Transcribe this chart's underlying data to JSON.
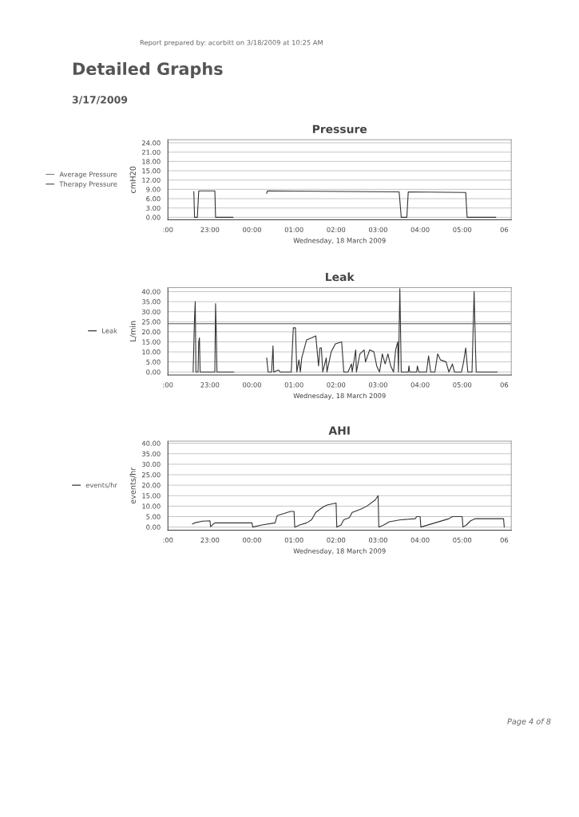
{
  "chart_data": [
    {
      "type": "other",
      "title": "Detailed Graphs",
      "subtitle": "3/17/2009",
      "annotations": [
        "Report prepared by: acorbitt on 3/18/2009 at 10:25 AM",
        "Page 4 of 8"
      ]
    },
    {
      "type": "line",
      "title": "Pressure",
      "xlabel": "Wednesday, 18 March 2009",
      "ylabel": "cmH20",
      "xlim": [
        "2009-03-17T22:00",
        "2009-03-18T06:10"
      ],
      "ylim": [
        -0.8,
        25
      ],
      "xticks": [
        {
          "value": "2009-03-17T22:00",
          "label": ":00"
        },
        {
          "value": "2009-03-17T23:00",
          "label": "23:00"
        },
        {
          "value": "2009-03-18T00:00",
          "label": "00:00"
        },
        {
          "value": "2009-03-18T01:00",
          "label": "01:00"
        },
        {
          "value": "2009-03-18T02:00",
          "label": "02:00"
        },
        {
          "value": "2009-03-18T03:00",
          "label": "03:00"
        },
        {
          "value": "2009-03-18T04:00",
          "label": "04:00"
        },
        {
          "value": "2009-03-18T05:00",
          "label": "05:00"
        },
        {
          "value": "2009-03-18T06:00",
          "label": "06"
        }
      ],
      "yticks": [
        {
          "value": 0,
          "label": "0.00"
        },
        {
          "value": 3,
          "label": "3.00"
        },
        {
          "value": 6,
          "label": "6.00"
        },
        {
          "value": 9,
          "label": "9.00"
        },
        {
          "value": 12,
          "label": "12.00"
        },
        {
          "value": 15,
          "label": "15.00"
        },
        {
          "value": 18,
          "label": "18.00"
        },
        {
          "value": 21,
          "label": "21.00"
        },
        {
          "value": 24,
          "label": "24.00"
        }
      ],
      "grid": "y",
      "legend": "left",
      "series": [
        {
          "name": "Average Pressure",
          "color": "#777777"
        },
        {
          "name": "Therapy Pressure",
          "color": "#333333",
          "x": [
            "2009-03-17T22:37",
            "2009-03-17T22:38",
            "2009-03-17T22:42",
            "2009-03-17T22:44",
            "2009-03-17T23:07",
            "2009-03-17T23:08",
            "2009-03-17T23:33",
            "2009-03-18T00:00",
            "2009-03-18T00:21",
            "2009-03-18T00:22",
            "2009-03-18T03:30",
            "2009-03-18T03:33",
            "2009-03-18T03:41",
            "2009-03-18T03:43",
            "2009-03-18T05:05",
            "2009-03-18T05:07",
            "2009-03-18T05:48"
          ],
          "values": [
            8.3,
            0,
            0,
            8.5,
            8.5,
            0,
            0,
            null,
            7.7,
            8.5,
            8.2,
            0,
            0,
            8.2,
            8.0,
            0,
            0
          ]
        }
      ]
    },
    {
      "type": "line",
      "title": "Leak",
      "xlabel": "Wednesday, 18 March 2009",
      "ylabel": "L/min",
      "xlim": [
        "2009-03-17T22:00",
        "2009-03-18T06:10"
      ],
      "ylim": [
        -1.5,
        42
      ],
      "xticks": [
        {
          "value": "2009-03-17T22:00",
          "label": ":00"
        },
        {
          "value": "2009-03-17T23:00",
          "label": "23:00"
        },
        {
          "value": "2009-03-18T00:00",
          "label": "00:00"
        },
        {
          "value": "2009-03-18T01:00",
          "label": "01:00"
        },
        {
          "value": "2009-03-18T02:00",
          "label": "02:00"
        },
        {
          "value": "2009-03-18T03:00",
          "label": "03:00"
        },
        {
          "value": "2009-03-18T04:00",
          "label": "04:00"
        },
        {
          "value": "2009-03-18T05:00",
          "label": "05:00"
        },
        {
          "value": "2009-03-18T06:00",
          "label": "06"
        }
      ],
      "yticks": [
        {
          "value": 0,
          "label": "0.00"
        },
        {
          "value": 5,
          "label": "5.00"
        },
        {
          "value": 10,
          "label": "10.00"
        },
        {
          "value": 15,
          "label": "15.00"
        },
        {
          "value": 20,
          "label": "20.00"
        },
        {
          "value": 25,
          "label": "25.00"
        },
        {
          "value": 30,
          "label": "30.00"
        },
        {
          "value": 35,
          "label": "35.00"
        },
        {
          "value": 40,
          "label": "40.00"
        }
      ],
      "grid": "y",
      "legend": "left",
      "ref_lines": [
        {
          "axis": "y",
          "value": 24,
          "label": null,
          "color": "#555555"
        }
      ],
      "series": [
        {
          "name": "Leak",
          "color": "#333333",
          "x": [
            "2009-03-17T22:36",
            "2009-03-17T22:38",
            "2009-03-17T22:39",
            "2009-03-17T22:40",
            "2009-03-17T22:43",
            "2009-03-17T22:44",
            "2009-03-17T22:45",
            "2009-03-17T22:46",
            "2009-03-17T23:07",
            "2009-03-17T23:08",
            "2009-03-17T23:09",
            "2009-03-17T23:10",
            "2009-03-17T23:34",
            "2009-03-18T00:00",
            "2009-03-18T00:21",
            "2009-03-18T00:23",
            "2009-03-18T00:28",
            "2009-03-18T00:30",
            "2009-03-18T00:31",
            "2009-03-18T00:38",
            "2009-03-18T00:40",
            "2009-03-18T00:56",
            "2009-03-18T00:59",
            "2009-03-18T01:02",
            "2009-03-18T01:04",
            "2009-03-18T01:07",
            "2009-03-18T01:09",
            "2009-03-18T01:11",
            "2009-03-18T01:18",
            "2009-03-18T01:25",
            "2009-03-18T01:31",
            "2009-03-18T01:35",
            "2009-03-18T01:37",
            "2009-03-18T01:39",
            "2009-03-18T01:41",
            "2009-03-18T01:46",
            "2009-03-18T01:47",
            "2009-03-18T01:53",
            "2009-03-18T01:59",
            "2009-03-18T02:08",
            "2009-03-18T02:11",
            "2009-03-18T02:17",
            "2009-03-18T02:22",
            "2009-03-18T02:23",
            "2009-03-18T02:28",
            "2009-03-18T02:29",
            "2009-03-18T02:34",
            "2009-03-18T02:40",
            "2009-03-18T02:42",
            "2009-03-18T02:48",
            "2009-03-18T02:54",
            "2009-03-18T02:58",
            "2009-03-18T03:02",
            "2009-03-18T03:06",
            "2009-03-18T03:10",
            "2009-03-18T03:14",
            "2009-03-18T03:18",
            "2009-03-18T03:22",
            "2009-03-18T03:25",
            "2009-03-18T03:28",
            "2009-03-18T03:29",
            "2009-03-18T03:31",
            "2009-03-18T03:33",
            "2009-03-18T03:43",
            "2009-03-18T03:44",
            "2009-03-18T03:45",
            "2009-03-18T03:55",
            "2009-03-18T03:56",
            "2009-03-18T03:58",
            "2009-03-18T04:09",
            "2009-03-18T04:12",
            "2009-03-18T04:15",
            "2009-03-18T04:21",
            "2009-03-18T04:25",
            "2009-03-18T04:29",
            "2009-03-18T04:37",
            "2009-03-18T04:41",
            "2009-03-18T04:46",
            "2009-03-18T04:49",
            "2009-03-18T04:59",
            "2009-03-18T05:02",
            "2009-03-18T05:05",
            "2009-03-18T05:08",
            "2009-03-18T05:14",
            "2009-03-18T05:17",
            "2009-03-18T05:19",
            "2009-03-18T05:20",
            "2009-03-18T05:50"
          ],
          "values": [
            0,
            27,
            35,
            0,
            0,
            15,
            17,
            0,
            0,
            34,
            20,
            0,
            0,
            null,
            7,
            0,
            0,
            13,
            0,
            1,
            0,
            0,
            22,
            22,
            0,
            6,
            0,
            7,
            16,
            17,
            18,
            3,
            12,
            12,
            0,
            7,
            0,
            10,
            14,
            15,
            0,
            0,
            4,
            0,
            11,
            0,
            9,
            11,
            5,
            11,
            10,
            3,
            0,
            9,
            4,
            9,
            3,
            0,
            11,
            15,
            0,
            41.5,
            0,
            0,
            3,
            0,
            0,
            3,
            0,
            0,
            8,
            0,
            0,
            9,
            6,
            5,
            0,
            4,
            0,
            0,
            5,
            12,
            0,
            0,
            40,
            11,
            0,
            0
          ]
        }
      ]
    },
    {
      "type": "line",
      "title": "AHI",
      "xlabel": "Wednesday, 18 March 2009",
      "ylabel": "events/hr",
      "xlim": [
        "2009-03-17T22:00",
        "2009-03-18T06:10"
      ],
      "ylim": [
        -1.5,
        41
      ],
      "xticks": [
        {
          "value": "2009-03-17T22:00",
          "label": ":00"
        },
        {
          "value": "2009-03-17T23:00",
          "label": "23:00"
        },
        {
          "value": "2009-03-18T00:00",
          "label": "00:00"
        },
        {
          "value": "2009-03-18T01:00",
          "label": "01:00"
        },
        {
          "value": "2009-03-18T02:00",
          "label": "02:00"
        },
        {
          "value": "2009-03-18T03:00",
          "label": "03:00"
        },
        {
          "value": "2009-03-18T04:00",
          "label": "04:00"
        },
        {
          "value": "2009-03-18T05:00",
          "label": "05:00"
        },
        {
          "value": "2009-03-18T06:00",
          "label": "06"
        }
      ],
      "yticks": [
        {
          "value": 0,
          "label": "0.00"
        },
        {
          "value": 5,
          "label": "5.00"
        },
        {
          "value": 10,
          "label": "10.00"
        },
        {
          "value": 15,
          "label": "15.00"
        },
        {
          "value": 20,
          "label": "20.00"
        },
        {
          "value": 25,
          "label": "25.00"
        },
        {
          "value": 30,
          "label": "30.00"
        },
        {
          "value": 35,
          "label": "35.00"
        },
        {
          "value": 40,
          "label": "40.00"
        }
      ],
      "grid": "y",
      "legend": "left",
      "series": [
        {
          "name": "events/hr",
          "color": "#333333",
          "x": [
            "2009-03-17T22:35",
            "2009-03-17T22:38",
            "2009-03-17T22:49",
            "2009-03-17T23:00",
            "2009-03-17T23:01",
            "2009-03-17T23:05",
            "2009-03-17T23:07",
            "2009-03-18T00:00",
            "2009-03-18T00:01",
            "2009-03-18T00:14",
            "2009-03-18T00:33",
            "2009-03-18T00:36",
            "2009-03-18T00:46",
            "2009-03-18T00:55",
            "2009-03-18T01:00",
            "2009-03-18T01:01",
            "2009-03-18T01:08",
            "2009-03-18T01:18",
            "2009-03-18T01:25",
            "2009-03-18T01:31",
            "2009-03-18T01:41",
            "2009-03-18T01:47",
            "2009-03-18T02:00",
            "2009-03-18T02:01",
            "2009-03-18T02:07",
            "2009-03-18T02:11",
            "2009-03-18T02:19",
            "2009-03-18T02:23",
            "2009-03-18T02:35",
            "2009-03-18T02:44",
            "2009-03-18T02:56",
            "2009-03-18T03:00",
            "2009-03-18T03:01",
            "2009-03-18T03:08",
            "2009-03-18T03:16",
            "2009-03-18T03:32",
            "2009-03-18T03:53",
            "2009-03-18T03:55",
            "2009-03-18T04:00",
            "2009-03-18T04:01",
            "2009-03-18T04:41",
            "2009-03-18T04:46",
            "2009-03-18T05:00",
            "2009-03-18T05:01",
            "2009-03-18T05:06",
            "2009-03-18T05:12",
            "2009-03-18T05:18",
            "2009-03-18T05:59",
            "2009-03-18T06:00"
          ],
          "values": [
            1.5,
            2,
            2.8,
            3,
            0.2,
            1.5,
            2,
            2,
            0,
            1,
            2,
            5.5,
            6.5,
            7.5,
            7.5,
            0,
            1,
            2,
            3.5,
            7,
            9.5,
            10.5,
            11.5,
            0,
            1,
            3.5,
            4.5,
            7,
            8.5,
            10,
            13,
            15,
            0,
            1,
            2.5,
            3.5,
            4,
            5,
            5,
            0,
            4,
            5,
            5,
            0,
            1,
            3,
            4,
            4,
            0
          ]
        }
      ]
    }
  ]
}
